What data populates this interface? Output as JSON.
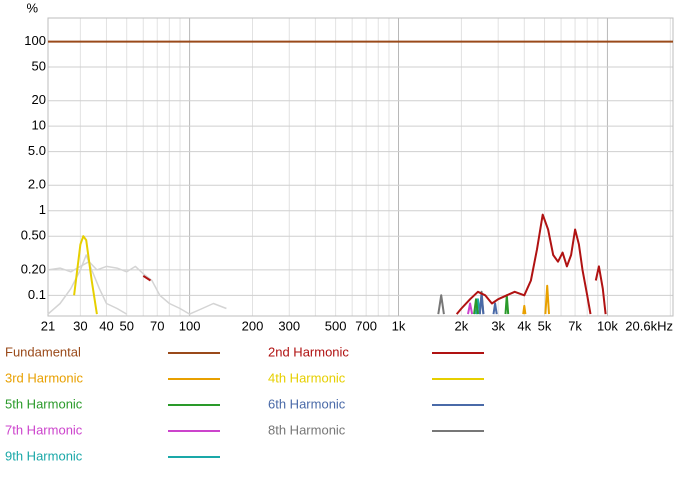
{
  "chart_data": {
    "type": "line",
    "xscale": "log",
    "yscale": "log",
    "y_label": "%",
    "xlim": [
      21,
      20600
    ],
    "ylim": [
      0.057,
      190
    ],
    "xticks": [
      21,
      30,
      40,
      50,
      70,
      100,
      200,
      300,
      500,
      700,
      {
        "value": 1000,
        "label": "1k"
      },
      {
        "value": 2000,
        "label": "2k"
      },
      {
        "value": 3000,
        "label": "3k"
      },
      {
        "value": 4000,
        "label": "4k"
      },
      {
        "value": 5000,
        "label": "5k"
      },
      {
        "value": 7000,
        "label": "7k"
      },
      {
        "value": 10000,
        "label": "10k"
      },
      {
        "value": 20600,
        "label": "20.6kHz"
      }
    ],
    "xgrid": [
      30,
      40,
      50,
      60,
      70,
      80,
      90,
      100,
      200,
      300,
      400,
      500,
      600,
      700,
      800,
      900,
      1000,
      2000,
      3000,
      4000,
      5000,
      6000,
      7000,
      8000,
      9000,
      10000,
      20000
    ],
    "yticks": [
      100,
      50,
      20,
      10,
      {
        "value": 5,
        "label": "5.0"
      },
      {
        "value": 2,
        "label": "2.0"
      },
      1,
      {
        "value": 0.5,
        "label": "0.50"
      },
      {
        "value": 0.2,
        "label": "0.20"
      },
      0.1
    ],
    "grid": true,
    "faint_traces": [
      {
        "color": "#d4d4d4",
        "x": [
          21,
          24,
          27,
          30,
          33,
          36,
          40,
          45,
          50,
          55,
          60,
          66,
          72,
          80,
          90,
          100,
          115,
          130,
          150
        ],
        "values": [
          0.2,
          0.21,
          0.19,
          0.22,
          0.25,
          0.2,
          0.22,
          0.21,
          0.19,
          0.22,
          0.18,
          0.15,
          0.1,
          0.08,
          0.07,
          0.06,
          0.07,
          0.08,
          0.07
        ]
      },
      {
        "color": "#d4d4d4",
        "x": [
          21,
          24,
          27,
          30,
          32,
          34,
          37,
          40,
          45,
          50
        ],
        "values": [
          0.06,
          0.08,
          0.12,
          0.2,
          0.3,
          0.2,
          0.12,
          0.08,
          0.07,
          0.06
        ]
      }
    ],
    "series": [
      {
        "name": "Fundamental",
        "color": "#9a4a1a",
        "x": [
          21,
          20600
        ],
        "values": [
          100,
          100
        ]
      },
      {
        "name": "2nd Harmonic",
        "color": "#b01212",
        "x": [
          60,
          65,
          null,
          1900,
          2000,
          2200,
          2400,
          2600,
          2800,
          3000,
          3300,
          3600,
          4000,
          4300,
          4600,
          4900,
          5200,
          5500,
          5800,
          6100,
          6400,
          6700,
          7000,
          7300,
          7600,
          8000,
          8300,
          null,
          8800,
          9100,
          9500,
          9800
        ],
        "values": [
          0.17,
          0.15,
          null,
          0.06,
          0.07,
          0.09,
          0.11,
          0.1,
          0.08,
          0.09,
          0.1,
          0.11,
          0.1,
          0.15,
          0.35,
          0.9,
          0.6,
          0.3,
          0.25,
          0.32,
          0.22,
          0.3,
          0.6,
          0.4,
          0.2,
          0.1,
          0.06,
          null,
          0.15,
          0.22,
          0.12,
          0.06
        ]
      },
      {
        "name": "3rd Harmonic",
        "color": "#e8a000",
        "x": [
          3950,
          4000,
          4050,
          null,
          5050,
          5150,
          5250
        ],
        "values": [
          0.06,
          0.075,
          0.06,
          null,
          0.06,
          0.13,
          0.06
        ]
      },
      {
        "name": "4th Harmonic",
        "color": "#e6cf00",
        "x": [
          28,
          30,
          31,
          32,
          34,
          36
        ],
        "values": [
          0.1,
          0.4,
          0.5,
          0.45,
          0.15,
          0.06
        ]
      },
      {
        "name": "5th Harmonic",
        "color": "#2a9a2a",
        "x": [
          3250,
          3300,
          3350,
          null,
          2300,
          2350,
          2400
        ],
        "values": [
          0.06,
          0.1,
          0.06,
          null,
          0.06,
          0.09,
          0.06
        ]
      },
      {
        "name": "6th Harmonic",
        "color": "#4a6aa8",
        "x": [
          2450,
          2500,
          2550,
          null,
          2850,
          2900,
          2950
        ],
        "values": [
          0.06,
          0.1,
          0.06,
          null,
          0.06,
          0.08,
          0.06
        ]
      },
      {
        "name": "7th Harmonic",
        "color": "#cc44cc",
        "x": [
          2150,
          2200,
          2250
        ],
        "values": [
          0.06,
          0.08,
          0.06
        ]
      },
      {
        "name": "8th Harmonic",
        "color": "#777777",
        "x": [
          1550,
          1600,
          1650,
          null,
          2450,
          2500,
          2550
        ],
        "values": [
          0.06,
          0.1,
          0.06,
          null,
          0.06,
          0.11,
          0.06
        ]
      },
      {
        "name": "9th Harmonic",
        "color": "#1aa8a8",
        "x": [
          2350,
          2400,
          2450
        ],
        "values": [
          0.06,
          0.09,
          0.06
        ]
      }
    ]
  }
}
